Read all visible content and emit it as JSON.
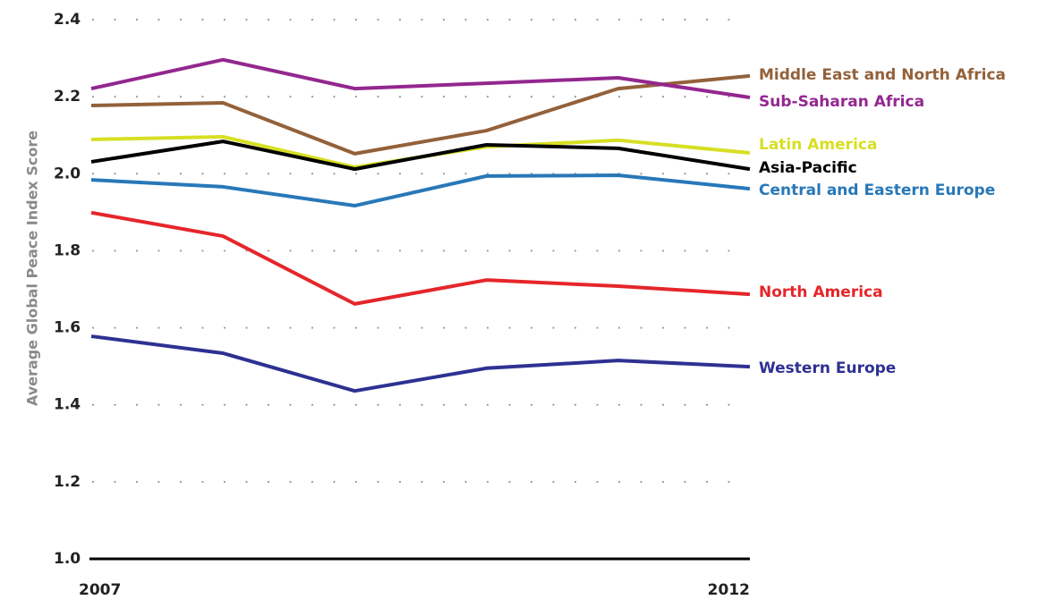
{
  "chart_data": {
    "type": "line",
    "y_label": "Average Global Peace Index Score",
    "categories": [
      "2007",
      null,
      null,
      null,
      null,
      "2012"
    ],
    "ylim": [
      1.0,
      2.4
    ],
    "yticks": [
      {
        "value": 1.0,
        "label": "1.0"
      },
      1.2,
      1.4,
      1.6,
      1.8,
      {
        "value": 2.0,
        "label": "2.0"
      },
      2.2,
      2.4
    ],
    "grid": true,
    "series": [
      {
        "name": "Middle East and North Africa",
        "color": "#93613a",
        "values": [
          2.177,
          2.184,
          2.052,
          2.112,
          2.221,
          2.254
        ]
      },
      {
        "name": "Sub-Saharan Africa",
        "color": "#93278f",
        "values": [
          2.221,
          2.296,
          2.221,
          2.235,
          2.249,
          2.198
        ]
      },
      {
        "name": "Latin America",
        "color": "#d7df23",
        "values": [
          2.089,
          2.096,
          2.017,
          2.07,
          2.087,
          2.054
        ]
      },
      {
        "name": "Asia-Pacific",
        "color": "#000000",
        "values": [
          2.031,
          2.084,
          2.012,
          2.075,
          2.066,
          2.012
        ]
      },
      {
        "name": "Central and Eastern Europe",
        "color": "#2878b8",
        "values": [
          1.984,
          1.966,
          1.917,
          1.994,
          1.996,
          1.961
        ]
      },
      {
        "name": "North America",
        "color": "#e5262a",
        "values": [
          1.899,
          1.838,
          1.662,
          1.724,
          1.708,
          1.687
        ]
      },
      {
        "name": "Western Europe",
        "color": "#2e3192",
        "values": [
          1.578,
          1.534,
          1.436,
          1.495,
          1.515,
          1.499
        ]
      }
    ]
  }
}
